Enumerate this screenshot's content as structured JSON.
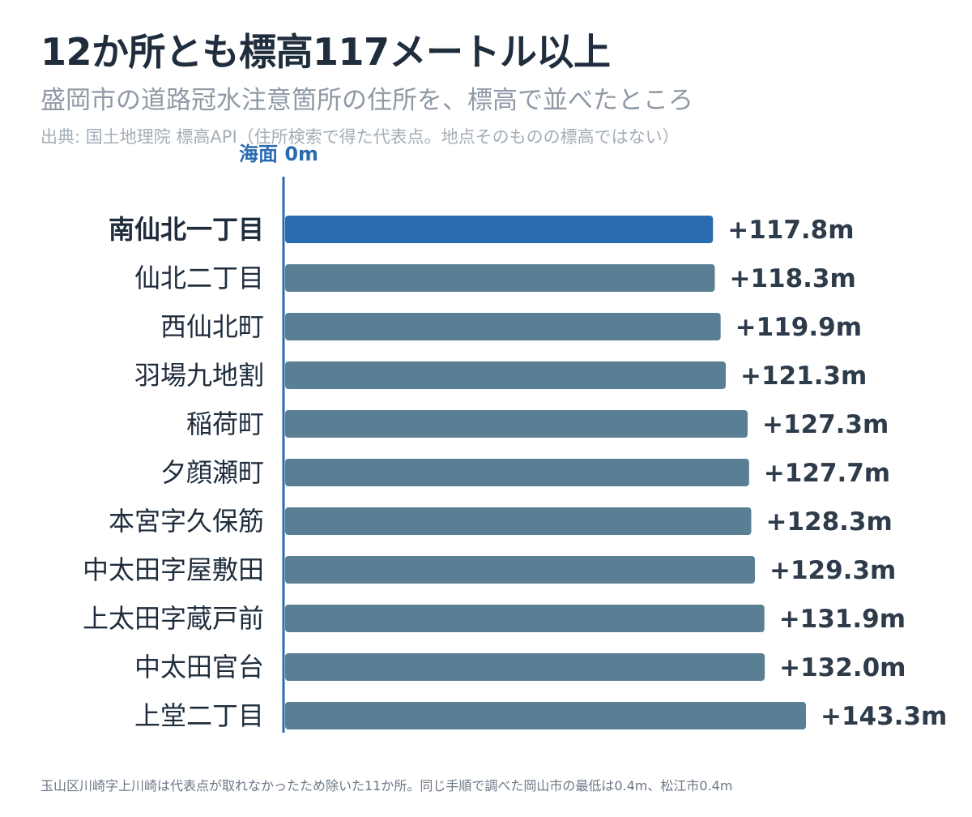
{
  "title": "12か所とも標高117メートル以上",
  "subtitle": "盛岡市の道路冠水注意箇所の住所を、標高で並べたところ",
  "source": "出典: 国土地理院 標高API（住所検索で得た代表点。地点そのものの標高ではない）",
  "footnote": "玉山区川崎字上川崎は代表点が取れなかったため除いた11か所。同じ手順で調べた岡山市の最低は0.4m、松江市0.4m",
  "colors": {
    "highlight": "#2b6cb0",
    "bar": "#5a7f95",
    "axis": "#2b6cb0",
    "label": "#1f2d3d",
    "value": "#2d3b4a"
  },
  "chart_data": {
    "type": "bar",
    "orientation": "horizontal",
    "baseline_label": "海面 0m",
    "unit": "m",
    "highlight_index": 0,
    "categories": [
      "南仙北一丁目",
      "仙北二丁目",
      "西仙北町",
      "羽場九地割",
      "稲荷町",
      "夕顔瀬町",
      "本宮字久保筋",
      "中太田字屋敷田",
      "上太田字蔵戸前",
      "中太田官台",
      "上堂二丁目"
    ],
    "values": [
      117.8,
      118.3,
      119.9,
      121.3,
      127.3,
      127.7,
      128.3,
      129.3,
      131.9,
      132.0,
      143.3
    ],
    "value_labels": [
      "+117.8m",
      "+118.3m",
      "+119.9m",
      "+121.3m",
      "+127.3m",
      "+127.7m",
      "+128.3m",
      "+129.3m",
      "+131.9m",
      "+132.0m",
      "+143.3m"
    ],
    "xlim": [
      0,
      143.3
    ]
  }
}
